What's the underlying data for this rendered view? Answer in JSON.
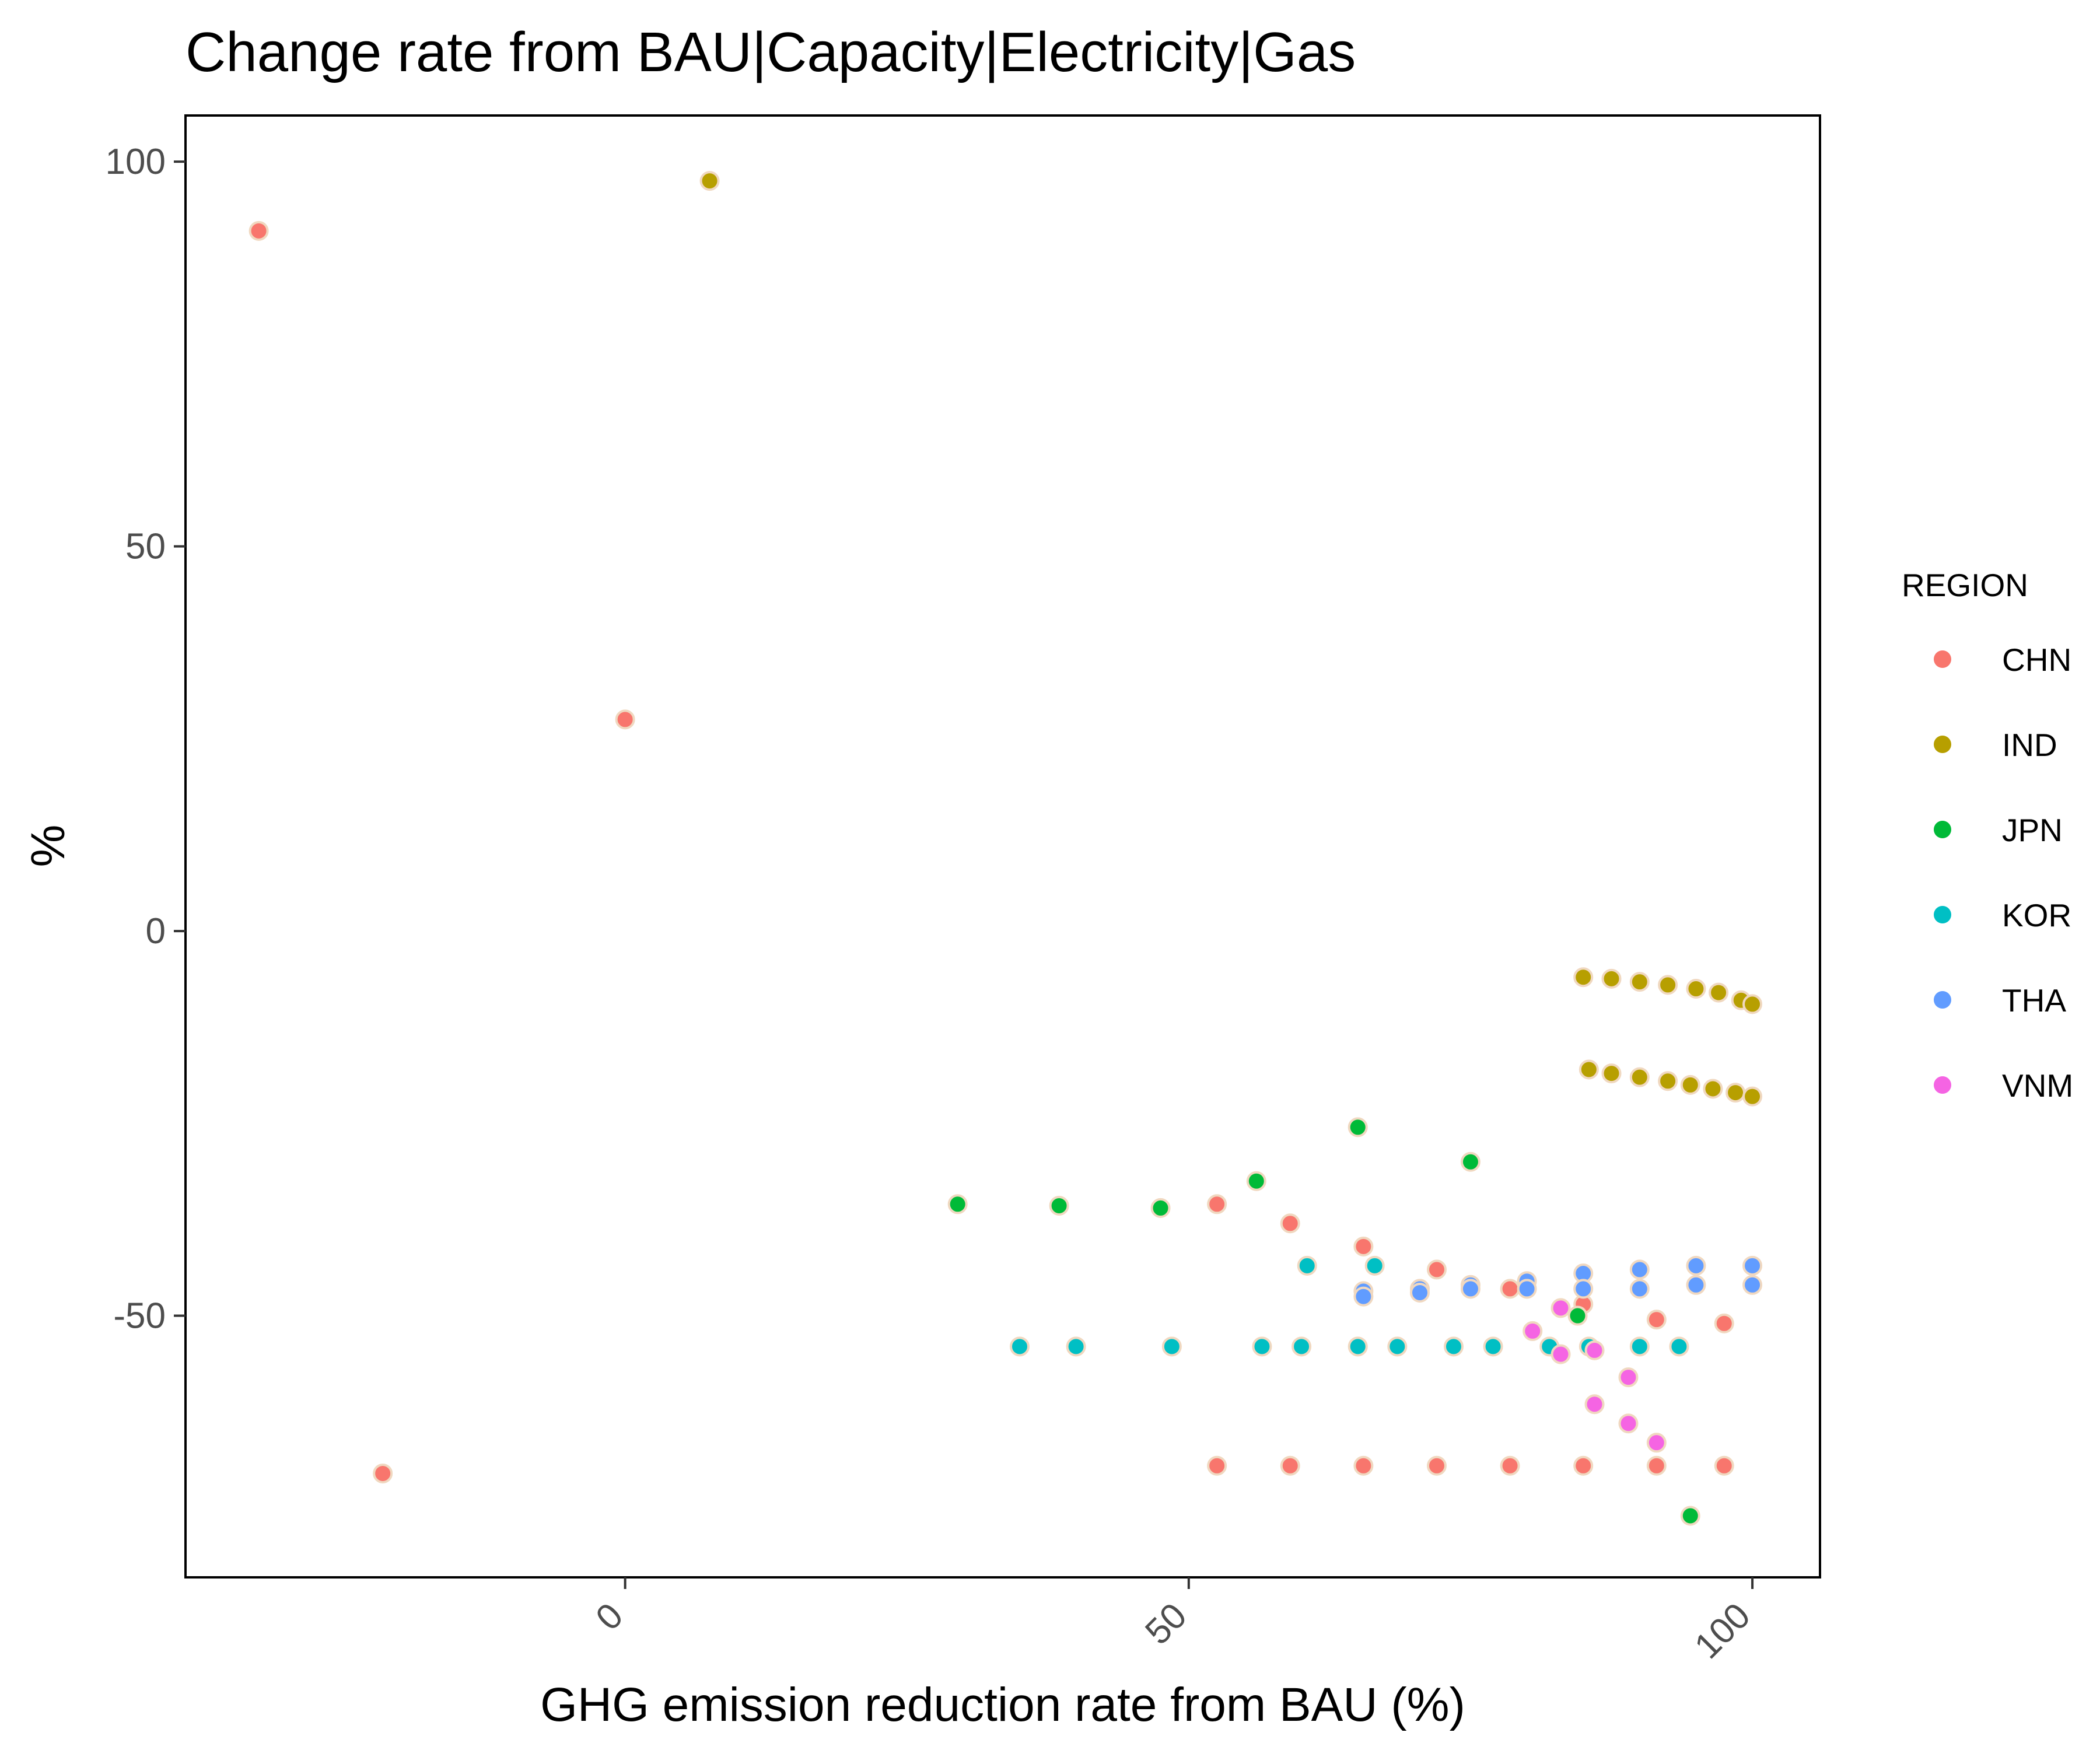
{
  "chart_data": {
    "type": "scatter",
    "title": "Change rate from BAU|Capacity|Electricity|Gas",
    "xlabel": "GHG emission reduction rate from BAU (%)",
    "ylabel": "%",
    "xlim": [
      -39,
      106
    ],
    "ylim": [
      -84,
      106
    ],
    "x_ticks": [
      0,
      50,
      100
    ],
    "x_tick_labels": [
      "0",
      "50",
      "100"
    ],
    "y_ticks": [
      100,
      50,
      0,
      -50
    ],
    "y_tick_labels": [
      "100",
      "50",
      "0",
      "-50"
    ],
    "grid": false,
    "legend": {
      "title": "REGION",
      "position": "right"
    },
    "series": [
      {
        "name": "CHN",
        "color": "#F8766D",
        "x": [
          -32.5,
          -21.5,
          0,
          52.5,
          59,
          65.5,
          72,
          78.5,
          85,
          91.5,
          97.5,
          52.5,
          59,
          65.5,
          72,
          78.5,
          85,
          91.5,
          97.5
        ],
        "y": [
          91,
          -70.5,
          27.5,
          -35.5,
          -38,
          -41,
          -44,
          -46.5,
          -48.5,
          -50.5,
          -51,
          -69.5,
          -69.5,
          -69.5,
          -69.5,
          -69.5,
          -69.5,
          -69.5,
          -69.5
        ]
      },
      {
        "name": "IND",
        "color": "#B79F00",
        "x": [
          7.5,
          85,
          87.5,
          90,
          92.5,
          95,
          97,
          99,
          100,
          85.5,
          87.5,
          90,
          92.5,
          94.5,
          96.5,
          98.5,
          100
        ],
        "y": [
          97.5,
          -6,
          -6.2,
          -6.6,
          -7,
          -7.5,
          -8,
          -9,
          -9.5,
          -18,
          -18.5,
          -19,
          -19.5,
          -20,
          -20.5,
          -21,
          -21.5
        ]
      },
      {
        "name": "JPN",
        "color": "#00BA38",
        "x": [
          29.5,
          38.5,
          47.5,
          56,
          65,
          75,
          84.5,
          94.5
        ],
        "y": [
          -35.5,
          -35.7,
          -36,
          -32.5,
          -25.5,
          -30,
          -50,
          -76
        ]
      },
      {
        "name": "KOR",
        "color": "#00BFC4",
        "x": [
          35,
          40,
          48.5,
          56.5,
          60,
          65,
          68.5,
          73.5,
          77,
          82,
          85.5,
          90,
          93.5,
          60.5,
          66.5
        ],
        "y": [
          -54,
          -54,
          -54,
          -54,
          -54,
          -54,
          -54,
          -54,
          -54,
          -54,
          -54,
          -54,
          -54,
          -43.5,
          -43.5
        ]
      },
      {
        "name": "THA",
        "color": "#619CFF",
        "x": [
          65.5,
          70.5,
          75,
          80,
          85,
          90,
          95,
          100,
          65.5,
          70.5,
          75,
          80,
          85,
          90,
          95,
          100
        ],
        "y": [
          -46.8,
          -46.5,
          -46,
          -45.5,
          -44.5,
          -44,
          -43.5,
          -43.5,
          -47.5,
          -47,
          -46.5,
          -46.5,
          -46.5,
          -46.5,
          -46,
          -46
        ]
      },
      {
        "name": "VNM",
        "color": "#F564E3",
        "x": [
          83,
          80.5,
          83,
          86,
          89,
          86,
          89,
          91.5
        ],
        "y": [
          -49,
          -52,
          -55,
          -54.5,
          -58,
          -61.5,
          -64,
          -66.5
        ]
      }
    ]
  }
}
